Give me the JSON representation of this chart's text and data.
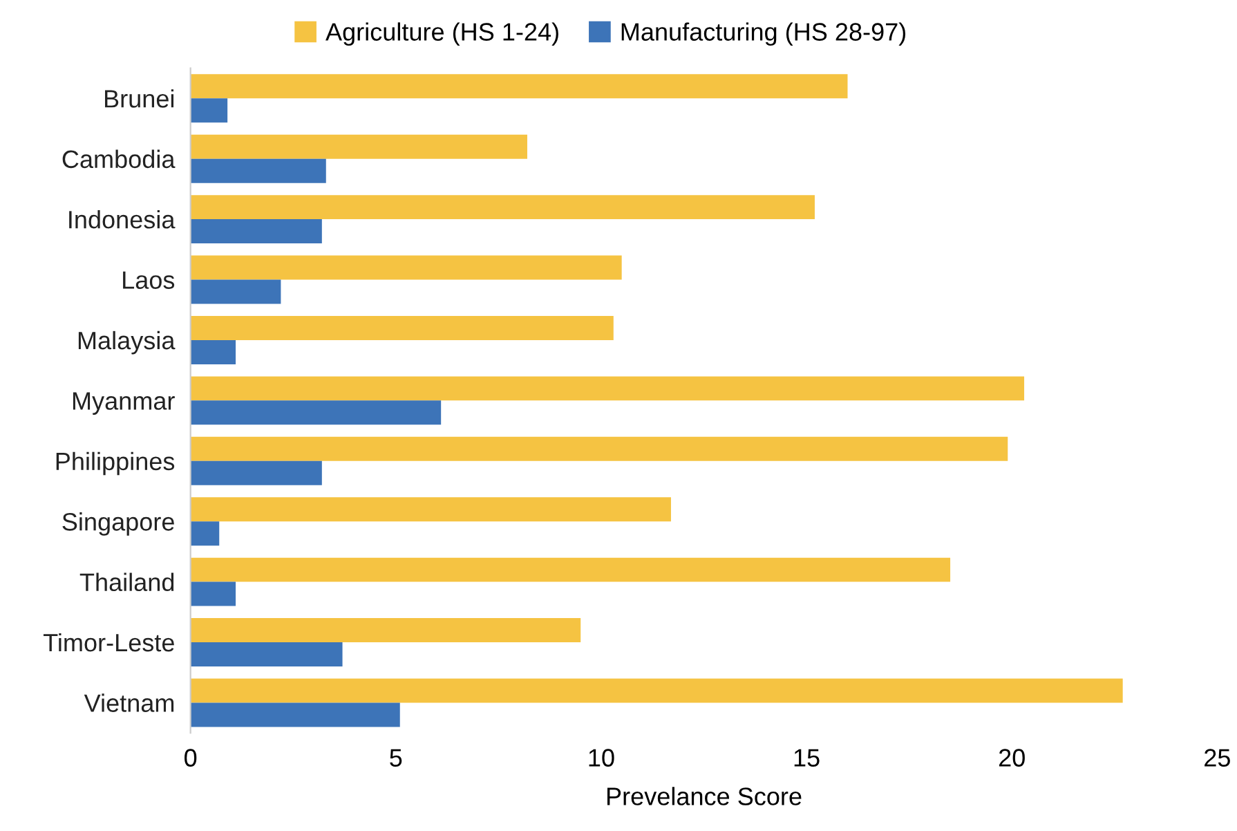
{
  "chart_data": {
    "type": "bar",
    "orientation": "horizontal",
    "xlabel": "Prevelance Score",
    "categories": [
      "Brunei",
      "Cambodia",
      "Indonesia",
      "Laos",
      "Malaysia",
      "Myanmar",
      "Philippines",
      "Singapore",
      "Thailand",
      "Timor-Leste",
      "Vietnam"
    ],
    "series": [
      {
        "name": "Agriculture (HS 1-24)",
        "color": "#f5c342",
        "values": [
          16.0,
          8.2,
          15.2,
          10.5,
          10.3,
          20.3,
          19.9,
          11.7,
          18.5,
          9.5,
          22.7
        ]
      },
      {
        "name": "Manufacturing (HS 28-97)",
        "color": "#3d74b8",
        "values": [
          0.9,
          3.3,
          3.2,
          2.2,
          1.1,
          6.1,
          3.2,
          0.7,
          1.1,
          3.7,
          5.1
        ]
      }
    ],
    "xlim": [
      0,
      25
    ],
    "xticks": [
      0,
      5,
      10,
      15,
      20,
      25
    ],
    "grid": false,
    "legend": "top"
  }
}
